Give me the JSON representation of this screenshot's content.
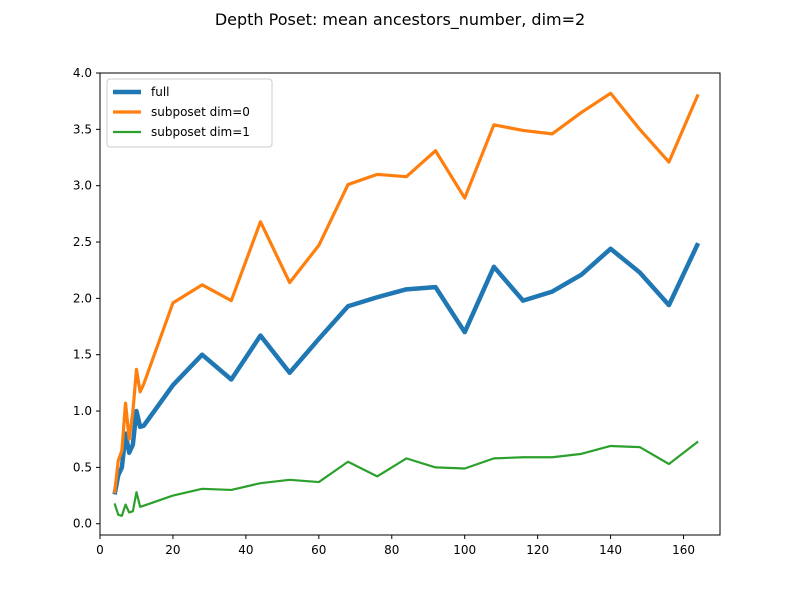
{
  "chart_data": {
    "type": "line",
    "title": "Depth Poset: mean ancestors_number, dim=2",
    "xlabel": "",
    "ylabel": "",
    "xlim": [
      0,
      170
    ],
    "ylim": [
      -0.1,
      4.0
    ],
    "xticks": [
      0,
      20,
      40,
      60,
      80,
      100,
      120,
      140,
      160
    ],
    "yticks": [
      0.0,
      0.5,
      1.0,
      1.5,
      2.0,
      2.5,
      3.0,
      3.5,
      4.0
    ],
    "xtick_labels": [
      "0",
      "20",
      "40",
      "60",
      "80",
      "100",
      "120",
      "140",
      "160"
    ],
    "ytick_labels": [
      "0.0",
      "0.5",
      "1.0",
      "1.5",
      "2.0",
      "2.5",
      "3.0",
      "3.5",
      "4.0"
    ],
    "legend_position": "top-left",
    "grid": false,
    "series": [
      {
        "name": "full",
        "color": "#1f77b4",
        "linewidth": 4.5,
        "x": [
          4,
          5,
          6,
          7,
          8,
          9,
          10,
          11,
          12,
          20,
          28,
          36,
          44,
          52,
          60,
          68,
          76,
          84,
          92,
          100,
          108,
          116,
          124,
          132,
          140,
          148,
          156,
          164
        ],
        "y": [
          0.26,
          0.43,
          0.5,
          0.8,
          0.63,
          0.7,
          1.0,
          0.86,
          0.87,
          1.23,
          1.5,
          1.28,
          1.67,
          1.34,
          1.64,
          1.93,
          2.01,
          2.08,
          2.1,
          1.7,
          2.28,
          1.98,
          2.06,
          2.21,
          2.44,
          2.23,
          1.94,
          2.49
        ]
      },
      {
        "name": "subposet dim=0",
        "color": "#ff7f0e",
        "linewidth": 3.2,
        "x": [
          4,
          5,
          6,
          7,
          8,
          9,
          10,
          11,
          12,
          20,
          28,
          36,
          44,
          52,
          60,
          68,
          76,
          84,
          92,
          100,
          108,
          116,
          124,
          132,
          140,
          148,
          156,
          164
        ],
        "y": [
          0.27,
          0.56,
          0.65,
          1.07,
          0.75,
          0.99,
          1.37,
          1.17,
          1.24,
          1.96,
          2.12,
          1.98,
          2.68,
          2.14,
          2.47,
          3.01,
          3.1,
          3.08,
          3.31,
          2.89,
          3.54,
          3.49,
          3.46,
          3.65,
          3.82,
          3.5,
          3.21,
          3.81
        ]
      },
      {
        "name": "subposet dim=1",
        "color": "#2ca02c",
        "linewidth": 2.2,
        "x": [
          4,
          5,
          6,
          7,
          8,
          9,
          10,
          11,
          12,
          20,
          28,
          36,
          44,
          52,
          60,
          68,
          76,
          84,
          92,
          100,
          108,
          116,
          124,
          132,
          140,
          148,
          156,
          164
        ],
        "y": [
          0.18,
          0.08,
          0.07,
          0.17,
          0.1,
          0.11,
          0.28,
          0.15,
          0.16,
          0.25,
          0.31,
          0.3,
          0.36,
          0.39,
          0.37,
          0.55,
          0.42,
          0.58,
          0.5,
          0.49,
          0.58,
          0.59,
          0.59,
          0.62,
          0.69,
          0.68,
          0.53,
          0.73
        ]
      }
    ]
  }
}
